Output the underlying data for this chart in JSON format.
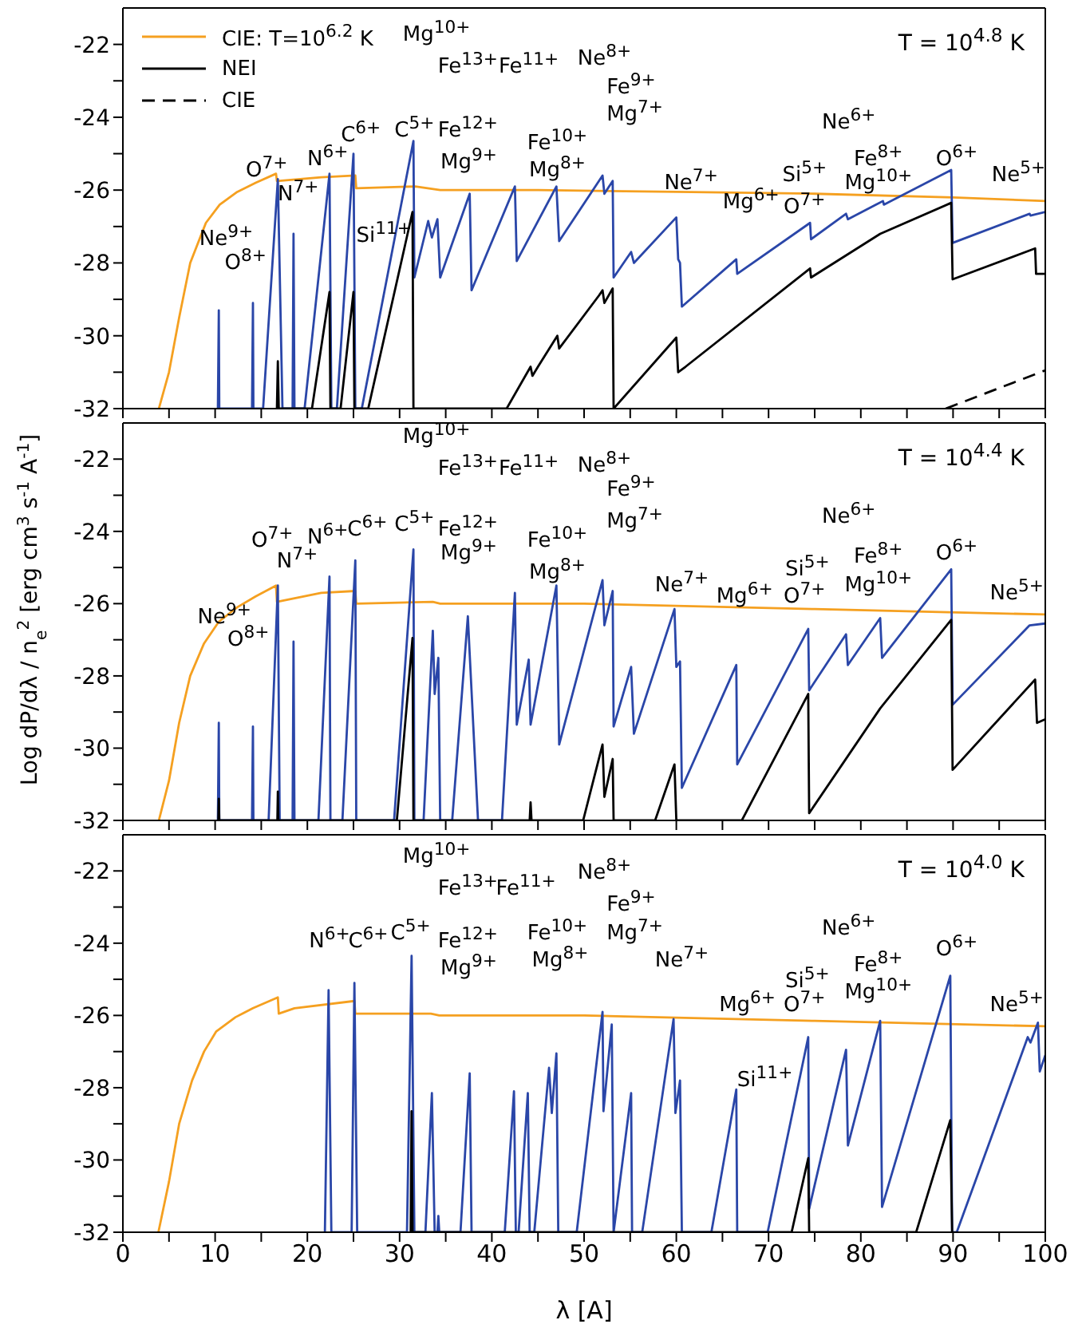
{
  "chart_data": [
    {
      "type": "line",
      "title": "T = 10$^{4.8}$ K",
      "legend": "top left",
      "tick_labels": "y",
      "xlim": [
        0,
        100
      ],
      "xticks": [
        0,
        {
          "value": 5,
          "label": null
        },
        10,
        {
          "value": 15,
          "label": null
        },
        20,
        {
          "value": 25,
          "label": null
        },
        30,
        {
          "value": 35,
          "label": null
        },
        40,
        {
          "value": 45,
          "label": null
        },
        50,
        {
          "value": 55,
          "label": null
        },
        60,
        {
          "value": 65,
          "label": null
        },
        70,
        {
          "value": 75,
          "label": null
        },
        80,
        {
          "value": 85,
          "label": null
        },
        90,
        {
          "value": 95,
          "label": null
        },
        100
      ],
      "ylim": [
        -32,
        -21
      ],
      "yticks": [
        -32,
        {
          "value": -31,
          "label": null
        },
        -30,
        {
          "value": -29,
          "label": null
        },
        -28,
        {
          "value": -27,
          "label": null
        },
        -26,
        {
          "value": -25,
          "label": null
        },
        -24,
        {
          "value": -23,
          "label": null
        },
        -22
      ],
      "series": [
        {
          "name": "CIE: T=10$^{6.2}$ K",
          "color": "#f5a020",
          "x": [
            3.9,
            5.0,
            6.1,
            7.3,
            9.0,
            10.5,
            12.4,
            14.4,
            16.6,
            16.7,
            21.5,
            25.2,
            25.3,
            31.7,
            34.4,
            45,
            60,
            75,
            90,
            100
          ],
          "values": [
            -32,
            -31.0,
            -29.5,
            -28.0,
            -26.9,
            -26.4,
            -26.05,
            -25.8,
            -25.55,
            -25.75,
            -25.65,
            -25.6,
            -25.95,
            -25.9,
            -26.0,
            -26.0,
            -26.05,
            -26.1,
            -26.2,
            -26.3
          ]
        },
        {
          "color": "#2a46a8",
          "x": [
            10.3,
            10.4,
            10.45,
            14.0,
            14.1,
            14.15,
            15.2,
            16.8,
            17.3,
            18.4,
            18.5,
            18.6,
            19.7,
            22.4,
            22.6,
            23.2,
            25.0,
            25.2,
            25.9,
            31.5,
            31.6,
            33.1,
            33.5,
            34.1,
            34.4,
            37.6,
            37.8,
            42.5,
            42.7,
            47.0,
            47.3,
            52.0,
            52.2,
            53.1,
            53.2,
            55.1,
            55.4,
            60.0,
            60.2,
            60.4,
            60.6,
            66.5,
            66.6,
            74.5,
            74.6,
            78.4,
            78.6,
            82.4,
            82.5,
            89.8,
            89.95,
            98.3,
            98.4,
            100
          ],
          "values": [
            -32,
            -29.3,
            -32,
            -32,
            -29.1,
            -32,
            -32,
            -25.7,
            -32,
            -32,
            -27.2,
            -32,
            -32,
            -25.55,
            -32,
            -32,
            -25.0,
            -32,
            -32,
            -24.65,
            -28.4,
            -26.85,
            -27.3,
            -26.8,
            -28.4,
            -26.1,
            -28.75,
            -25.9,
            -27.95,
            -25.9,
            -27.4,
            -25.6,
            -26.1,
            -25.75,
            -28.4,
            -27.7,
            -28.0,
            -26.75,
            -27.9,
            -28.0,
            -29.2,
            -27.9,
            -28.3,
            -26.9,
            -27.35,
            -26.65,
            -26.8,
            -26.3,
            -26.4,
            -25.45,
            -27.45,
            -26.65,
            -26.7,
            -26.6
          ]
        },
        {
          "name": "NEI",
          "color": "#000000",
          "x": [
            16.7,
            16.8,
            16.9,
            20.5,
            22.4,
            22.5,
            23.6,
            25.0,
            25.1,
            26.6,
            31.4,
            31.5,
            41.6,
            44.2,
            44.4,
            45.0,
            47.1,
            47.3,
            51.6,
            52.0,
            52.2,
            53.1,
            53.2,
            60.0,
            60.2,
            61.0,
            74.5,
            74.6,
            82.1,
            89.8,
            89.95,
            98.9,
            99.0,
            100
          ],
          "values": [
            -32,
            -30.7,
            -32,
            -32,
            -28.8,
            -32,
            -32,
            -28.8,
            -32,
            -32,
            -26.6,
            -32,
            -32,
            -30.85,
            -31.1,
            -30.85,
            -30.0,
            -30.35,
            -28.9,
            -28.75,
            -29.1,
            -28.7,
            -32,
            -30.05,
            -31.0,
            -30.85,
            -28.15,
            -28.4,
            -27.2,
            -26.35,
            -28.45,
            -27.6,
            -28.3,
            -28.3
          ]
        },
        {
          "name": "CIE",
          "color": "#000000",
          "line_style": "dashed",
          "x": [
            89.2,
            100
          ],
          "values": [
            -32,
            -30.95
          ]
        }
      ],
      "annotations": [
        "Mg$^{10+}$",
        "Fe$^{13+}$",
        "Fe$^{11+}$",
        "Ne$^{8+}$",
        "Fe$^{9+}$",
        "Mg$^{7+}$",
        "Fe$^{12+}$",
        "Mg$^{9+}$",
        "Fe$^{10+}$",
        "Mg$^{8+}$",
        "O$^{7+}$",
        "N$^{6+}$",
        "C$^{6+}$",
        "C$^{5+}$",
        "N$^{7+}$",
        "Ne$^{9+}$",
        "O$^{8+}$",
        "Si$^{11+}$",
        "Ne$^{7+}$",
        "Mg$^{6+}$",
        "Si$^{5+}$",
        "O$^{7+}$",
        "Ne$^{6+}$",
        "Fe$^{8+}$",
        "Mg$^{10+}$",
        "O$^{6+}$",
        "Ne$^{5+}$"
      ]
    },
    {
      "type": "line",
      "title": "T = 10$^{4.4}$ K",
      "tick_labels": "y",
      "ylabel": "Log dP/dλ / n$_{e}$$^{2}$ [erg cm$^{3}$ s$^{-1}$ A$^{-1}$]",
      "xlim": [
        0,
        100
      ],
      "xticks": [
        0,
        {
          "value": 5,
          "label": null
        },
        10,
        {
          "value": 15,
          "label": null
        },
        20,
        {
          "value": 25,
          "label": null
        },
        30,
        {
          "value": 35,
          "label": null
        },
        40,
        {
          "value": 45,
          "label": null
        },
        50,
        {
          "value": 55,
          "label": null
        },
        60,
        {
          "value": 65,
          "label": null
        },
        70,
        {
          "value": 75,
          "label": null
        },
        80,
        {
          "value": 85,
          "label": null
        },
        90,
        {
          "value": 95,
          "label": null
        },
        100
      ],
      "ylim": [
        -32,
        -21
      ],
      "yticks": [
        -32,
        {
          "value": -31,
          "label": null
        },
        -30,
        {
          "value": -29,
          "label": null
        },
        -28,
        {
          "value": -27,
          "label": null
        },
        -26,
        {
          "value": -25,
          "label": null
        },
        -24,
        {
          "value": -23,
          "label": null
        },
        -22
      ],
      "series": [
        {
          "color": "#f5a020",
          "x": [
            3.9,
            5.0,
            6.1,
            7.3,
            8.8,
            10.4,
            12.4,
            14.4,
            16.6,
            16.7,
            21.5,
            25.2,
            25.3,
            33.6,
            34.4,
            50,
            75,
            100
          ],
          "values": [
            -32,
            -30.9,
            -29.3,
            -28.0,
            -27.1,
            -26.5,
            -26.1,
            -25.8,
            -25.5,
            -25.95,
            -25.7,
            -25.65,
            -26.0,
            -25.95,
            -26.0,
            -26.0,
            -26.15,
            -26.3
          ]
        },
        {
          "color": "#2a46a8",
          "x": [
            10.3,
            10.4,
            10.45,
            14.0,
            14.1,
            14.15,
            15.8,
            16.8,
            17.0,
            18.4,
            18.5,
            18.6,
            21.2,
            22.4,
            22.5,
            23.8,
            25.2,
            25.3,
            29.4,
            31.5,
            31.6,
            32.6,
            33.6,
            33.8,
            34.2,
            34.4,
            35.7,
            37.4,
            37.6,
            38.5,
            41.1,
            42.5,
            42.7,
            44.0,
            44.2,
            47.0,
            47.3,
            52.0,
            52.2,
            53.1,
            53.2,
            55.1,
            55.4,
            59.8,
            60.0,
            60.4,
            60.6,
            66.5,
            66.6,
            74.3,
            74.4,
            78.4,
            78.6,
            82.1,
            82.3,
            89.8,
            89.95,
            98.3,
            100
          ],
          "values": [
            -32,
            -29.3,
            -32,
            -32,
            -29.4,
            -32,
            -32,
            -25.5,
            -32,
            -32,
            -27.05,
            -32,
            -32,
            -25.25,
            -32,
            -32,
            -24.8,
            -32,
            -32,
            -24.5,
            -32,
            -32,
            -26.75,
            -28.5,
            -27.5,
            -32,
            -32,
            -26.35,
            -27.4,
            -32,
            -32,
            -25.7,
            -29.35,
            -27.55,
            -29.35,
            -25.5,
            -29.9,
            -25.35,
            -26.6,
            -25.65,
            -29.4,
            -27.75,
            -29.6,
            -26.15,
            -27.75,
            -27.6,
            -31.1,
            -27.7,
            -30.45,
            -26.7,
            -28.4,
            -26.85,
            -27.7,
            -26.4,
            -27.5,
            -25.05,
            -28.8,
            -26.6,
            -26.55
          ]
        },
        {
          "color": "#000000",
          "x": [
            10.35,
            10.4,
            10.45,
            16.75,
            16.8,
            16.85,
            29.7,
            31.4,
            31.5,
            44.1,
            44.2,
            44.3,
            49.9,
            52.0,
            52.2,
            53.1,
            53.2,
            57.7,
            59.8,
            60.0,
            67.1,
            74.3,
            74.4,
            82.1,
            89.8,
            89.95,
            98.9,
            99.1,
            100
          ],
          "values": [
            -32,
            -31.4,
            -32,
            -32,
            -31.2,
            -32,
            -32,
            -26.95,
            -32,
            -32,
            -31.5,
            -32,
            -32,
            -29.9,
            -31.35,
            -30.3,
            -32,
            -32,
            -30.45,
            -32,
            -32,
            -28.5,
            -31.8,
            -28.9,
            -26.45,
            -30.6,
            -28.1,
            -29.3,
            -29.2
          ]
        }
      ],
      "annotations": [
        "Mg$^{10+}$",
        "Fe$^{13+}$",
        "Fe$^{11+}$",
        "Ne$^{8+}$",
        "Fe$^{9+}$",
        "Mg$^{7+}$",
        "Fe$^{12+}$",
        "Mg$^{9+}$",
        "Fe$^{10+}$",
        "Mg$^{8+}$",
        "O$^{7+}$",
        "N$^{6+}$",
        "C$^{6+}$",
        "C$^{5+}$",
        "N$^{7+}$",
        "Ne$^{9+}$",
        "O$^{8+}$",
        "Ne$^{7+}$",
        "Mg$^{6+}$",
        "Si$^{5+}$",
        "O$^{7+}$",
        "Ne$^{6+}$",
        "Fe$^{8+}$",
        "Mg$^{10+}$",
        "O$^{6+}$",
        "Ne$^{5+}$"
      ]
    },
    {
      "type": "line",
      "title": "T = 10$^{4.0}$ K",
      "xlabel": "λ [A]",
      "xlim": [
        0,
        100
      ],
      "xticks": [
        0,
        {
          "value": 5,
          "label": null
        },
        10,
        {
          "value": 15,
          "label": null
        },
        20,
        {
          "value": 25,
          "label": null
        },
        30,
        {
          "value": 35,
          "label": null
        },
        40,
        {
          "value": 45,
          "label": null
        },
        50,
        {
          "value": 55,
          "label": null
        },
        60,
        {
          "value": 65,
          "label": null
        },
        70,
        {
          "value": 75,
          "label": null
        },
        80,
        {
          "value": 85,
          "label": null
        },
        90,
        {
          "value": 95,
          "label": null
        },
        100
      ],
      "ylim": [
        -32,
        -21
      ],
      "yticks": [
        -32,
        {
          "value": -31,
          "label": null
        },
        -30,
        {
          "value": -29,
          "label": null
        },
        -28,
        {
          "value": -27,
          "label": null
        },
        -26,
        {
          "value": -25,
          "label": null
        },
        -24,
        {
          "value": -23,
          "label": null
        },
        -22
      ],
      "series": [
        {
          "color": "#f5a020",
          "x": [
            3.85,
            5.0,
            6.1,
            7.5,
            8.8,
            10.1,
            12.2,
            14.1,
            16.8,
            16.9,
            18.6,
            25.1,
            25.2,
            33.4,
            34.3,
            50,
            75,
            100
          ],
          "values": [
            -32,
            -30.6,
            -29.0,
            -27.8,
            -27.0,
            -26.45,
            -26.05,
            -25.8,
            -25.5,
            -25.95,
            -25.8,
            -25.6,
            -25.95,
            -25.95,
            -26.0,
            -26.0,
            -26.15,
            -26.3
          ]
        },
        {
          "color": "#2a46a8",
          "x": [
            21.9,
            22.3,
            22.6,
            24.8,
            25.1,
            25.4,
            30.8,
            31.3,
            31.6,
            32.8,
            33.5,
            33.8,
            34.1,
            34.2,
            34.3,
            36.6,
            37.6,
            37.8,
            41.4,
            42.4,
            42.6,
            42.9,
            43.9,
            44.1,
            44.6,
            46.2,
            46.5,
            47.0,
            47.2,
            49.2,
            52.0,
            52.1,
            53.0,
            53.2,
            55.1,
            55.2,
            56.3,
            59.7,
            59.9,
            60.4,
            60.6,
            63.8,
            66.5,
            66.6,
            69.9,
            74.3,
            74.4,
            78.4,
            78.6,
            82.1,
            82.3,
            89.7,
            89.9,
            90.4,
            98.1,
            98.4,
            99.2,
            99.4,
            100
          ],
          "values": [
            -32,
            -25.3,
            -32,
            -32,
            -25.1,
            -32,
            -32,
            -24.35,
            -32,
            -32,
            -28.15,
            -32,
            -32,
            -31.55,
            -32,
            -32,
            -27.6,
            -32,
            -32,
            -28.1,
            -32,
            -32,
            -28.15,
            -32,
            -32,
            -27.45,
            -28.7,
            -27.05,
            -32,
            -32,
            -25.9,
            -28.65,
            -26.25,
            -32,
            -28.15,
            -32,
            -32,
            -26.1,
            -28.7,
            -27.8,
            -32,
            -32,
            -28.05,
            -32,
            -32,
            -26.6,
            -31.35,
            -26.95,
            -29.6,
            -26.15,
            -31.3,
            -24.9,
            -32,
            -32,
            -26.6,
            -26.75,
            -26.2,
            -27.55,
            -27.1
          ]
        },
        {
          "color": "#000000",
          "x": [
            31.2,
            31.3,
            31.4,
            72.5,
            74.3,
            74.4,
            86.0,
            89.7,
            89.9
          ],
          "values": [
            -32,
            -28.65,
            -32,
            -32,
            -29.95,
            -32,
            -32,
            -28.9,
            -32
          ]
        }
      ],
      "annotations": [
        "Mg$^{10+}$",
        "Fe$^{13+}$",
        "Fe$^{11+}$",
        "Ne$^{8+}$",
        "Fe$^{9+}$",
        "Mg$^{7+}$",
        "Fe$^{12+}$",
        "Mg$^{9+}$",
        "Fe$^{10+}$",
        "Mg$^{8+}$",
        "N$^{6+}$",
        "C$^{6+}$",
        "C$^{5+}$",
        "Ne$^{7+}$",
        "Mg$^{6+}$",
        "Si$^{11+}$",
        "Si$^{5+}$",
        "O$^{7+}$",
        "Ne$^{6+}$",
        "Fe$^{8+}$",
        "Mg$^{10+}$",
        "O$^{6+}$",
        "Ne$^{5+}$"
      ]
    }
  ]
}
